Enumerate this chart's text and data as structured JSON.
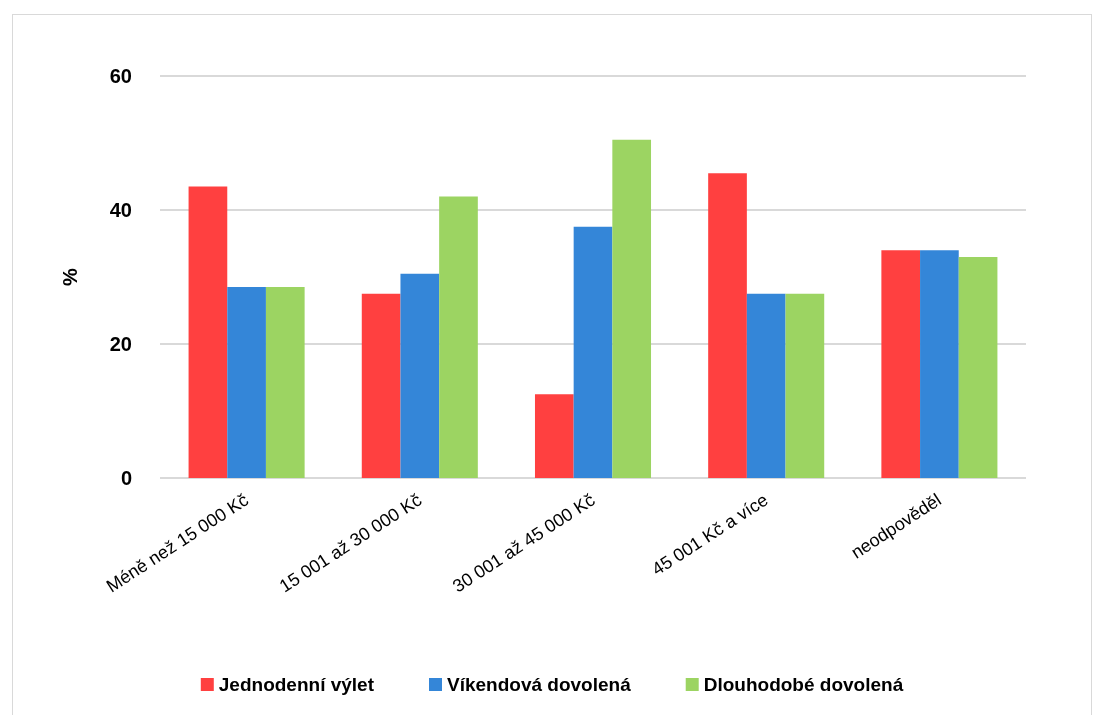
{
  "chart_data": {
    "type": "bar",
    "ylabel": "%",
    "categories": [
      "Méně než 15 000 Kč",
      "15 001 až 30 000 Kč",
      "30 001 až 45 000 Kč",
      "45 001 Kč a více",
      "neodpověděl"
    ],
    "series": [
      {
        "name": "Jednodenní výlet",
        "color": "#ff4040",
        "values": [
          43.5,
          27.5,
          12.5,
          45.5,
          34
        ]
      },
      {
        "name": "Víkendová dovolená",
        "color": "#3486d8",
        "values": [
          28.5,
          30.5,
          37.5,
          27.5,
          34
        ]
      },
      {
        "name": "Dlouhodobé dovolená",
        "color": "#9cd462",
        "values": [
          28.5,
          42,
          50.5,
          27.5,
          33
        ]
      }
    ],
    "ylim": [
      0,
      60
    ],
    "yticks": [
      0,
      20,
      40,
      60
    ],
    "grid": "y",
    "legend": "bottom"
  }
}
